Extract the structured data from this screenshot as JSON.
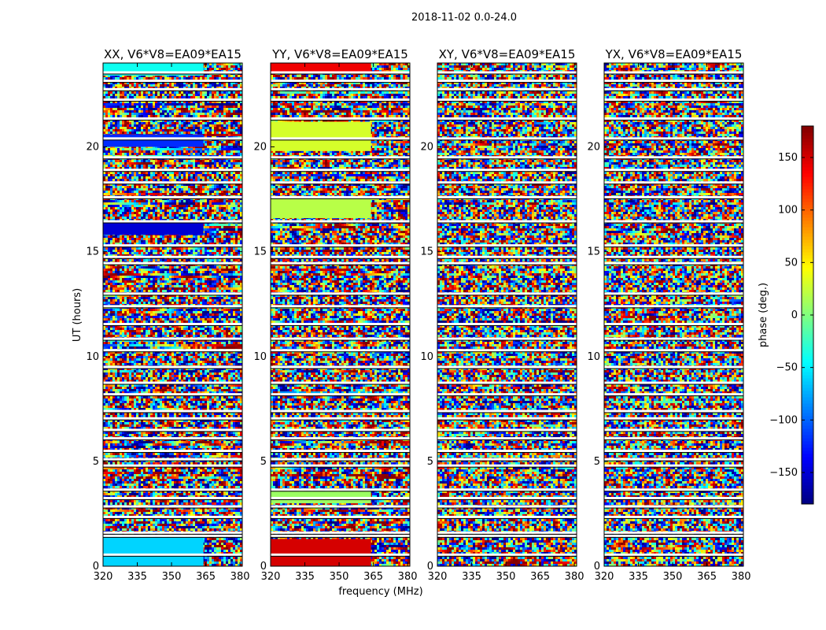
{
  "chart_data": {
    "type": "heatmap",
    "suptitle": "2018-11-02 0.0-24.0",
    "xlabel": "frequency (MHz)",
    "ylabel": "UT (hours)",
    "xlim": [
      320,
      381
    ],
    "ylim": [
      0,
      24
    ],
    "xticks": [
      320,
      335,
      350,
      365,
      380
    ],
    "yticks": [
      0,
      5,
      10,
      15,
      20
    ],
    "colormap": "jet",
    "panels": [
      {
        "title": "XX, V6*V8=EA09*EA15",
        "pattern": "amplitude-like",
        "blocks": [
          {
            "t": [
              0.0,
              1.4
            ],
            "value": -60
          },
          {
            "t": [
              15.8,
              16.4
            ],
            "value": -150
          },
          {
            "t": [
              20.0,
              20.6
            ],
            "value": -120
          },
          {
            "t": [
              23.4,
              24.0
            ],
            "value": -40
          }
        ]
      },
      {
        "title": "YY, V6*V8=EA09*EA15",
        "pattern": "amplitude-like",
        "blocks": [
          {
            "t": [
              0.0,
              1.3
            ],
            "value": 150
          },
          {
            "t": [
              3.0,
              3.6
            ],
            "value": 10
          },
          {
            "t": [
              16.6,
              17.6
            ],
            "value": 20
          },
          {
            "t": [
              19.8,
              21.2
            ],
            "value": 30
          },
          {
            "t": [
              23.6,
              24.0
            ],
            "value": 140
          }
        ]
      },
      {
        "title": "XY, V6*V8=EA09*EA15",
        "pattern": "noise",
        "blocks": []
      },
      {
        "title": "YX, V6*V8=EA09*EA15",
        "pattern": "noise",
        "blocks": []
      }
    ],
    "colorbar": {
      "label": "phase (deg.)",
      "range": [
        -180,
        180
      ],
      "ticks": [
        -150,
        -100,
        -50,
        0,
        50,
        100,
        150
      ],
      "tick_labels": [
        "−150",
        "−100",
        "−50",
        "0",
        "50",
        "100",
        "150"
      ]
    },
    "gaps_ut": [
      0.55,
      1.45,
      1.6,
      2.35,
      2.85,
      3.25,
      3.65,
      4.8,
      5.1,
      5.5,
      6.1,
      6.5,
      7.05,
      7.4,
      8.2,
      8.75,
      9.5,
      10.3,
      10.85,
      11.55,
      12.4,
      13.0,
      14.45,
      14.75,
      15.3,
      16.45,
      17.6,
      18.3,
      18.9,
      19.5,
      20.4,
      21.35,
      22.25,
      22.75,
      23.15,
      23.55
    ]
  }
}
